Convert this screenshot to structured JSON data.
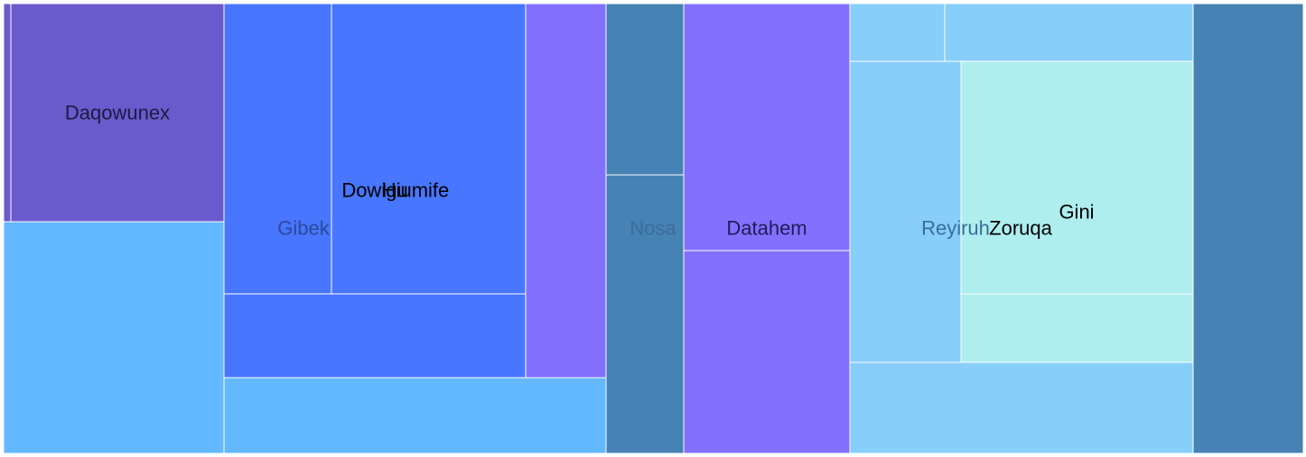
{
  "chart_data": {
    "type": "treemap",
    "title": "",
    "colors": {
      "slate_purple": "#6A5ACD",
      "light_purple": "#8470FF",
      "royal_blue": "#4876FF",
      "sky_blue": "#63B8FF",
      "steel_blue": "#4682B4",
      "light_sky_blue": "#87CEFA",
      "pale_turquoise": "#AEEEEE"
    },
    "cells": [
      {
        "id": "c1",
        "label": "",
        "value": 2167,
        "color": "#6A5ACD",
        "label_color": "#000000"
      },
      {
        "id": "c2",
        "label": "Daqowunex",
        "value": 57050,
        "color": "#6A5ACD",
        "label_color": "#1e1a40"
      },
      {
        "id": "c3",
        "label": "",
        "value": 62475,
        "color": "#63B8FF",
        "label_color": "#000000"
      },
      {
        "id": "c4",
        "label": "Gibek",
        "value": 38010,
        "color": "#4876FF",
        "label_color": "#2a4a9a"
      },
      {
        "id": "c5",
        "label": "Dowigu",
        "value": 69238,
        "color": "#4876FF",
        "label_color": "#000000"
      },
      {
        "id": "c6",
        "label": "Hiumife",
        "value": 0,
        "color": "#4876FF",
        "label_color": "#000000"
      },
      {
        "id": "c7",
        "label": "",
        "value": 31080,
        "color": "#4876FF",
        "label_color": "#000000"
      },
      {
        "id": "c8",
        "label": "",
        "value": 24885,
        "color": "#8470FF",
        "label_color": "#000000"
      },
      {
        "id": "c9",
        "label": "",
        "value": 35700,
        "color": "#63B8FF",
        "label_color": "#000000"
      },
      {
        "id": "c10",
        "label": "",
        "value": 16340,
        "color": "#4682B4",
        "label_color": "#000000"
      },
      {
        "id": "c11",
        "label": "Nosa",
        "value": 26660,
        "color": "#4682B4",
        "label_color": "#3a6e9a"
      },
      {
        "id": "c12",
        "label": "Datahem",
        "value": 50600,
        "color": "#8470FF",
        "label_color": "#221a55"
      },
      {
        "id": "c13",
        "label": "",
        "value": 41300,
        "color": "#8470FF",
        "label_color": "#000000"
      },
      {
        "id": "c14",
        "label": "",
        "value": 6630,
        "color": "#87CEFA",
        "label_color": "#000000"
      },
      {
        "id": "c15",
        "label": "",
        "value": 17550,
        "color": "#87CEFA",
        "label_color": "#000000"
      },
      {
        "id": "c16",
        "label": "Reyiruh",
        "value": 40480,
        "color": "#87CEFA",
        "label_color": "#3a6e9a"
      },
      {
        "id": "c17",
        "label": "Zoruqa",
        "value": 66300,
        "color": "#AEEEEE",
        "label_color": "#000000"
      },
      {
        "id": "c18",
        "label": "Gini",
        "value": 0,
        "color": "#AEEEEE",
        "label_color": "#000000"
      },
      {
        "id": "c19",
        "label": "",
        "value": 19800,
        "color": "#AEEEEE",
        "label_color": "#000000"
      },
      {
        "id": "c20",
        "label": "",
        "value": 38000,
        "color": "#87CEFA",
        "label_color": "#000000"
      },
      {
        "id": "c21",
        "label": "",
        "value": 62000,
        "color": "#4682B4",
        "label_color": "#000000"
      }
    ]
  }
}
